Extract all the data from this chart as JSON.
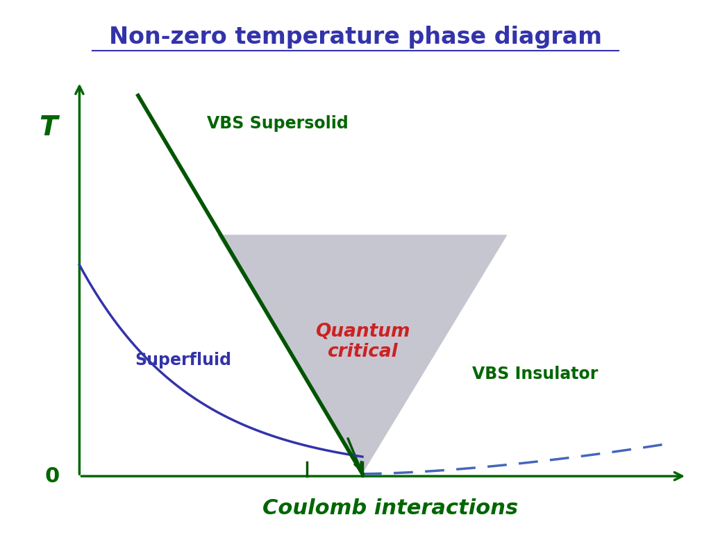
{
  "title": "Non-zero temperature phase diagram",
  "title_color": "#3333aa",
  "title_fontsize": 24,
  "background_color": "#e0e0e8",
  "xlabel": "Coulomb interactions",
  "xlabel_color": "#006600",
  "xlabel_fontsize": 22,
  "T_label": "T",
  "T_label_color": "#006600",
  "zero_label": "0",
  "zero_label_color": "#006600",
  "vbs_supersolid_label": "VBS Supersolid",
  "vbs_supersolid_color": "#006600",
  "superfluid_label": "Superfluid",
  "superfluid_color": "#3333aa",
  "vbs_insulator_label": "VBS Insulator",
  "vbs_insulator_color": "#006600",
  "quantum_critical_label": "Quantum\ncritical",
  "quantum_critical_color": "#cc2222",
  "triangle_color": "#c0c0cc",
  "triangle_alpha": 0.9,
  "axis_color": "#006600",
  "blue_curve_color": "#3333aa",
  "green_line_color": "#005500",
  "dashed_line_color": "#4466bb"
}
